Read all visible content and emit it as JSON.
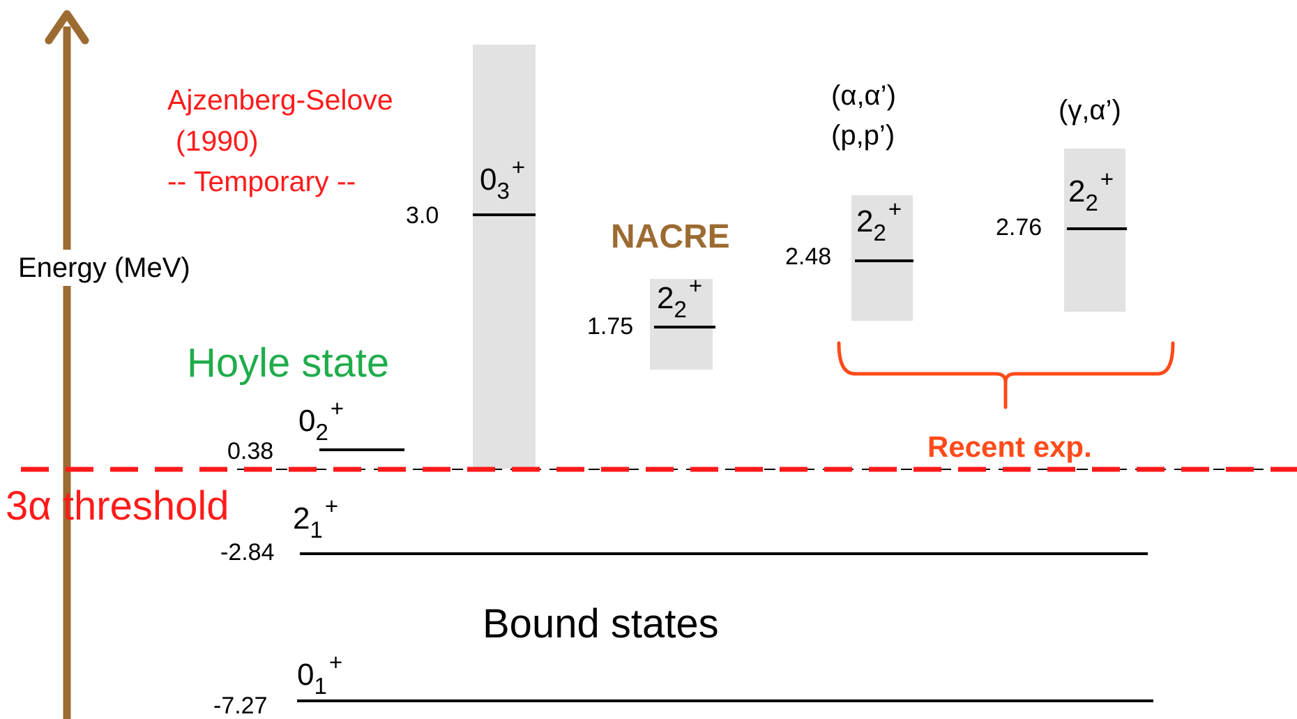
{
  "axis": {
    "label": "Energy (MeV)",
    "color": "#9c6b32"
  },
  "threshold": {
    "label": "3α threshold",
    "color": "#ff1a1a"
  },
  "bound_label": "Bound states",
  "hoyle_label": "Hoyle state",
  "ajzenberg": {
    "line1": "Ajzenberg-Selove",
    "line2": "(1990)",
    "line3": "-- Temporary --",
    "color": "#ff1a1a"
  },
  "nacre_label": "NACRE",
  "recent": {
    "label": "Recent exp.",
    "color": "#ff4a1a"
  },
  "reactions": {
    "alpha": "(α,α’)",
    "proton": "(p,p’)",
    "gamma": "(γ,α’)"
  },
  "levels": [
    {
      "id": "0_1",
      "energy": "-7.27",
      "spin": "0",
      "index": "1",
      "parity": "+"
    },
    {
      "id": "2_1",
      "energy": "-2.84",
      "spin": "2",
      "index": "1",
      "parity": "+"
    },
    {
      "id": "0_2",
      "energy": "0.38",
      "spin": "0",
      "index": "2",
      "parity": "+"
    },
    {
      "id": "0_3",
      "energy": "3.0",
      "spin": "0",
      "index": "3",
      "parity": "+"
    },
    {
      "id": "2_2_nacre",
      "energy": "1.75",
      "spin": "2",
      "index": "2",
      "parity": "+"
    },
    {
      "id": "2_2_alpha",
      "energy": "2.48",
      "spin": "2",
      "index": "2",
      "parity": "+"
    },
    {
      "id": "2_2_gamma",
      "energy": "2.76",
      "spin": "2",
      "index": "2",
      "parity": "+"
    }
  ],
  "colors": {
    "width_box": "#e1e2e1",
    "hoyle": "#1fac4b",
    "nacre": "#9c6b32"
  }
}
